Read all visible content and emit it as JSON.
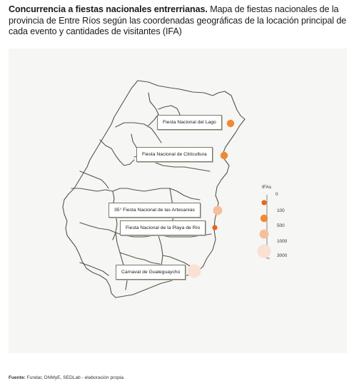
{
  "title": {
    "bold": "Concurrencia a fiestas nacionales entrerrianas.",
    "rest": "Mapa de fiestas nacionales de la provincia de Entre Ríos según las coordenadas geográficas de la locación principal de cada evento y cantidades de visitantes (IFA)"
  },
  "events": [
    {
      "label": "Fiesta Nacional del Lago",
      "ifa": 500,
      "color": "#ef8a33"
    },
    {
      "label": "Fiesta Nacional de Citricultura",
      "ifa": 500,
      "color": "#ef8a33"
    },
    {
      "label": "35° Fiesta Nacional de las Artesanías",
      "ifa": 1000,
      "color": "#f6bf9c"
    },
    {
      "label": "Fiesta Nacional de la Playa de Río",
      "ifa": 100,
      "color": "#e8641f"
    },
    {
      "label": "Carnaval de Gualeguaychú",
      "ifa": 3000,
      "color": "#fbe1d3"
    }
  ],
  "legend": {
    "title": "IFAs",
    "values": [
      "0",
      "100",
      "500",
      "1000",
      "3000"
    ],
    "colors": [
      "#e8641f",
      "#ef8a33",
      "#f6bf9c",
      "#fbe1d3"
    ]
  },
  "footer": {
    "label": "Fuente:",
    "text": "Fundar, DNMyE, SEDLab - elaboración propia."
  }
}
